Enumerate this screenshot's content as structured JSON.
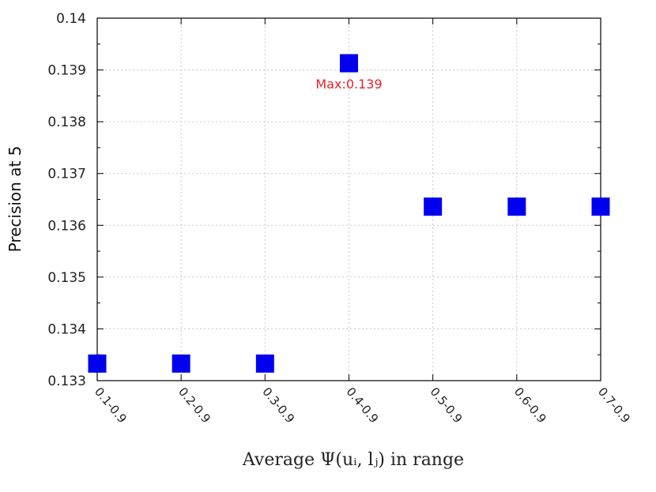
{
  "chart_data": {
    "type": "scatter",
    "title": "",
    "xlabel": "Average Ψ(uᵢ, lⱼ) in range",
    "ylabel": "Precision at 5",
    "categories": [
      "0.1-0.9",
      "0.2-0.9",
      "0.3-0.9",
      "0.4-0.9",
      "0.5-0.9",
      "0.6-0.9",
      "0.7-0.9"
    ],
    "values": [
      0.13333,
      0.13333,
      0.13333,
      0.13913,
      0.13636,
      0.13636,
      0.13636
    ],
    "ylim": [
      0.133,
      0.14
    ],
    "yticks": [
      "0.133",
      "0.134",
      "0.135",
      "0.136",
      "0.137",
      "0.138",
      "0.139",
      "0.14"
    ],
    "grid": true,
    "marker": "square",
    "marker_color": "#0000ee",
    "annotation": {
      "text": "Max:0.139",
      "category": "0.4-0.9",
      "value": 0.13913,
      "color": "#e8202a"
    }
  }
}
